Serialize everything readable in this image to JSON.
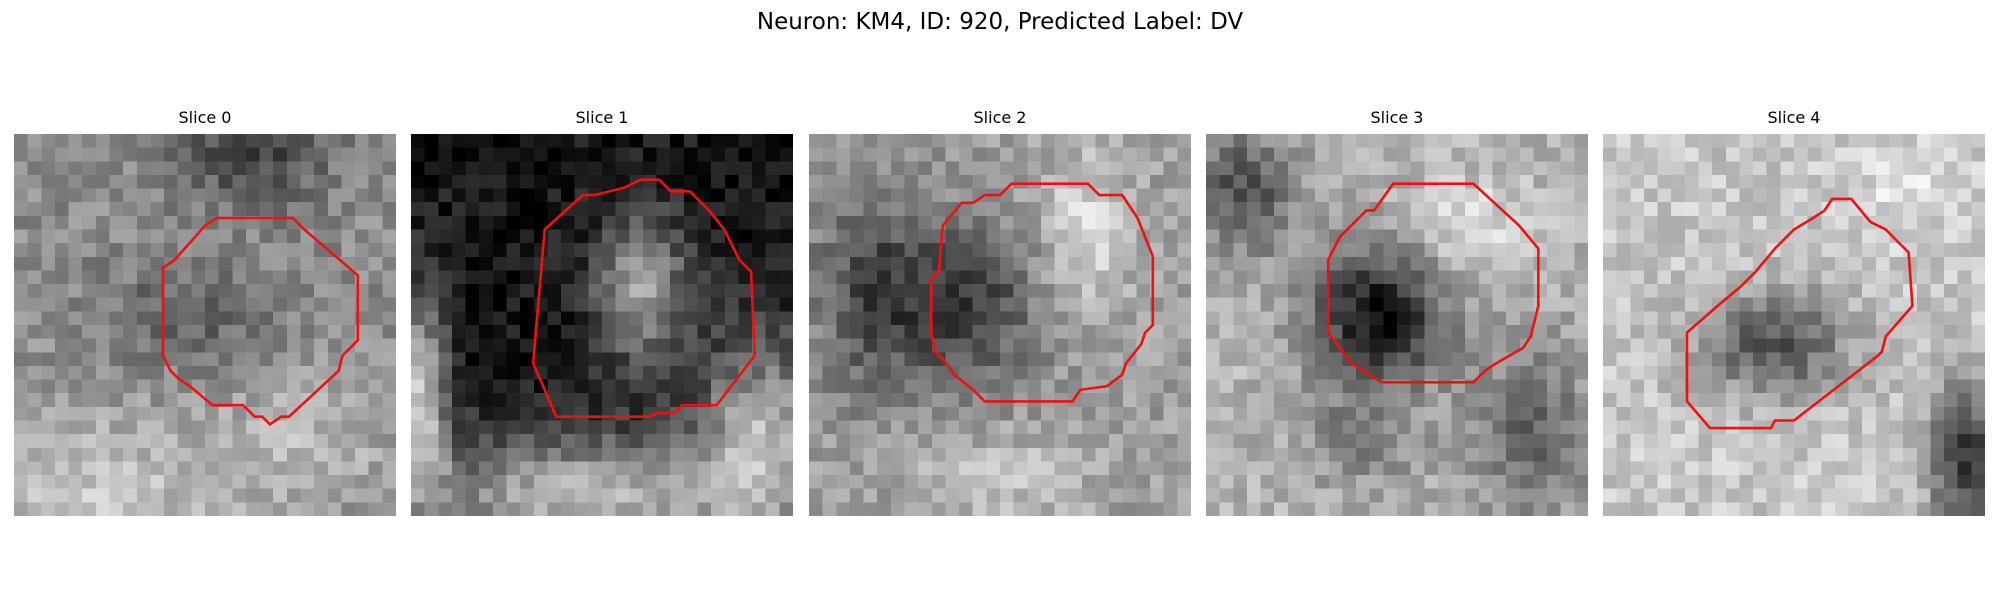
{
  "figure": {
    "title": "Neuron: KM4, ID: 920, Predicted Label: DV"
  },
  "panels": [
    {
      "title": "Slice 0",
      "base_gray": 0.55,
      "blobs": [
        [
          0.62,
          0.05,
          0.25,
          0.17,
          -0.3
        ],
        [
          0.45,
          0.48,
          0.28,
          0.18,
          -0.18
        ],
        [
          0.2,
          0.95,
          0.5,
          0.3,
          0.22
        ],
        [
          0.78,
          0.8,
          0.3,
          0.25,
          0.15
        ]
      ],
      "roi": [
        [
          0.53,
          0.22
        ],
        [
          0.73,
          0.22
        ],
        [
          0.76,
          0.25
        ],
        [
          0.9,
          0.37
        ],
        [
          0.9,
          0.54
        ],
        [
          0.86,
          0.58
        ],
        [
          0.85,
          0.62
        ],
        [
          0.72,
          0.74
        ],
        [
          0.7,
          0.74
        ],
        [
          0.67,
          0.76
        ],
        [
          0.65,
          0.74
        ],
        [
          0.63,
          0.74
        ],
        [
          0.6,
          0.71
        ],
        [
          0.52,
          0.71
        ],
        [
          0.46,
          0.66
        ],
        [
          0.43,
          0.64
        ],
        [
          0.41,
          0.62
        ],
        [
          0.39,
          0.58
        ],
        [
          0.39,
          0.35
        ],
        [
          0.42,
          0.33
        ],
        [
          0.5,
          0.24
        ]
      ]
    },
    {
      "title": "Slice 1",
      "base_gray": 0.08,
      "blobs": [
        [
          0.02,
          0.7,
          0.1,
          0.35,
          0.7
        ],
        [
          0.6,
          0.4,
          0.16,
          0.25,
          0.55
        ],
        [
          0.45,
          0.95,
          0.55,
          0.2,
          0.65
        ],
        [
          0.92,
          0.8,
          0.22,
          0.35,
          0.6
        ]
      ],
      "roi": [
        [
          0.35,
          0.25
        ],
        [
          0.45,
          0.16
        ],
        [
          0.48,
          0.16
        ],
        [
          0.56,
          0.14
        ],
        [
          0.6,
          0.12
        ],
        [
          0.65,
          0.12
        ],
        [
          0.68,
          0.15
        ],
        [
          0.73,
          0.15
        ],
        [
          0.78,
          0.2
        ],
        [
          0.82,
          0.25
        ],
        [
          0.86,
          0.33
        ],
        [
          0.89,
          0.36
        ],
        [
          0.9,
          0.58
        ],
        [
          0.8,
          0.71
        ],
        [
          0.71,
          0.71
        ],
        [
          0.69,
          0.73
        ],
        [
          0.65,
          0.73
        ],
        [
          0.62,
          0.74
        ],
        [
          0.38,
          0.74
        ],
        [
          0.32,
          0.6
        ]
      ]
    },
    {
      "title": "Slice 2",
      "base_gray": 0.62,
      "blobs": [
        [
          0.4,
          0.45,
          0.25,
          0.28,
          -0.4
        ],
        [
          0.72,
          0.25,
          0.15,
          0.25,
          0.25
        ],
        [
          0.15,
          0.4,
          0.18,
          0.35,
          -0.3
        ],
        [
          0.5,
          0.9,
          0.3,
          0.15,
          0.15
        ]
      ],
      "roi": [
        [
          0.35,
          0.24
        ],
        [
          0.4,
          0.18
        ],
        [
          0.43,
          0.18
        ],
        [
          0.46,
          0.16
        ],
        [
          0.5,
          0.16
        ],
        [
          0.53,
          0.13
        ],
        [
          0.73,
          0.13
        ],
        [
          0.76,
          0.16
        ],
        [
          0.82,
          0.16
        ],
        [
          0.86,
          0.22
        ],
        [
          0.9,
          0.32
        ],
        [
          0.9,
          0.5
        ],
        [
          0.88,
          0.52
        ],
        [
          0.87,
          0.55
        ],
        [
          0.83,
          0.6
        ],
        [
          0.82,
          0.63
        ],
        [
          0.78,
          0.66
        ],
        [
          0.71,
          0.67
        ],
        [
          0.69,
          0.7
        ],
        [
          0.46,
          0.7
        ],
        [
          0.43,
          0.67
        ],
        [
          0.38,
          0.63
        ],
        [
          0.36,
          0.6
        ],
        [
          0.33,
          0.57
        ],
        [
          0.32,
          0.52
        ],
        [
          0.32,
          0.38
        ],
        [
          0.34,
          0.36
        ]
      ]
    },
    {
      "title": "Slice 3",
      "base_gray": 0.7,
      "blobs": [
        [
          0.45,
          0.48,
          0.22,
          0.22,
          -0.65
        ],
        [
          0.1,
          0.15,
          0.18,
          0.2,
          -0.4
        ],
        [
          0.85,
          0.78,
          0.2,
          0.3,
          -0.3
        ],
        [
          0.4,
          0.8,
          0.2,
          0.15,
          -0.2
        ],
        [
          0.7,
          0.25,
          0.18,
          0.15,
          0.2
        ]
      ],
      "roi": [
        [
          0.35,
          0.27
        ],
        [
          0.42,
          0.2
        ],
        [
          0.44,
          0.2
        ],
        [
          0.49,
          0.13
        ],
        [
          0.7,
          0.13
        ],
        [
          0.82,
          0.24
        ],
        [
          0.87,
          0.3
        ],
        [
          0.87,
          0.45
        ],
        [
          0.85,
          0.53
        ],
        [
          0.83,
          0.56
        ],
        [
          0.76,
          0.6
        ],
        [
          0.73,
          0.62
        ],
        [
          0.7,
          0.65
        ],
        [
          0.46,
          0.65
        ],
        [
          0.38,
          0.6
        ],
        [
          0.32,
          0.52
        ],
        [
          0.32,
          0.33
        ]
      ]
    },
    {
      "title": "Slice 4",
      "base_gray": 0.78,
      "blobs": [
        [
          0.45,
          0.55,
          0.25,
          0.18,
          -0.45
        ],
        [
          0.95,
          0.85,
          0.12,
          0.25,
          -0.6
        ],
        [
          0.8,
          0.15,
          0.2,
          0.15,
          0.1
        ]
      ],
      "roi": [
        [
          0.3,
          0.45
        ],
        [
          0.36,
          0.4
        ],
        [
          0.4,
          0.36
        ],
        [
          0.45,
          0.3
        ],
        [
          0.5,
          0.25
        ],
        [
          0.55,
          0.22
        ],
        [
          0.58,
          0.2
        ],
        [
          0.6,
          0.17
        ],
        [
          0.65,
          0.17
        ],
        [
          0.7,
          0.23
        ],
        [
          0.74,
          0.25
        ],
        [
          0.77,
          0.28
        ],
        [
          0.8,
          0.31
        ],
        [
          0.81,
          0.45
        ],
        [
          0.74,
          0.53
        ],
        [
          0.73,
          0.57
        ],
        [
          0.72,
          0.58
        ],
        [
          0.5,
          0.75
        ],
        [
          0.45,
          0.75
        ],
        [
          0.44,
          0.77
        ],
        [
          0.28,
          0.77
        ],
        [
          0.22,
          0.7
        ],
        [
          0.22,
          0.52
        ]
      ]
    }
  ]
}
